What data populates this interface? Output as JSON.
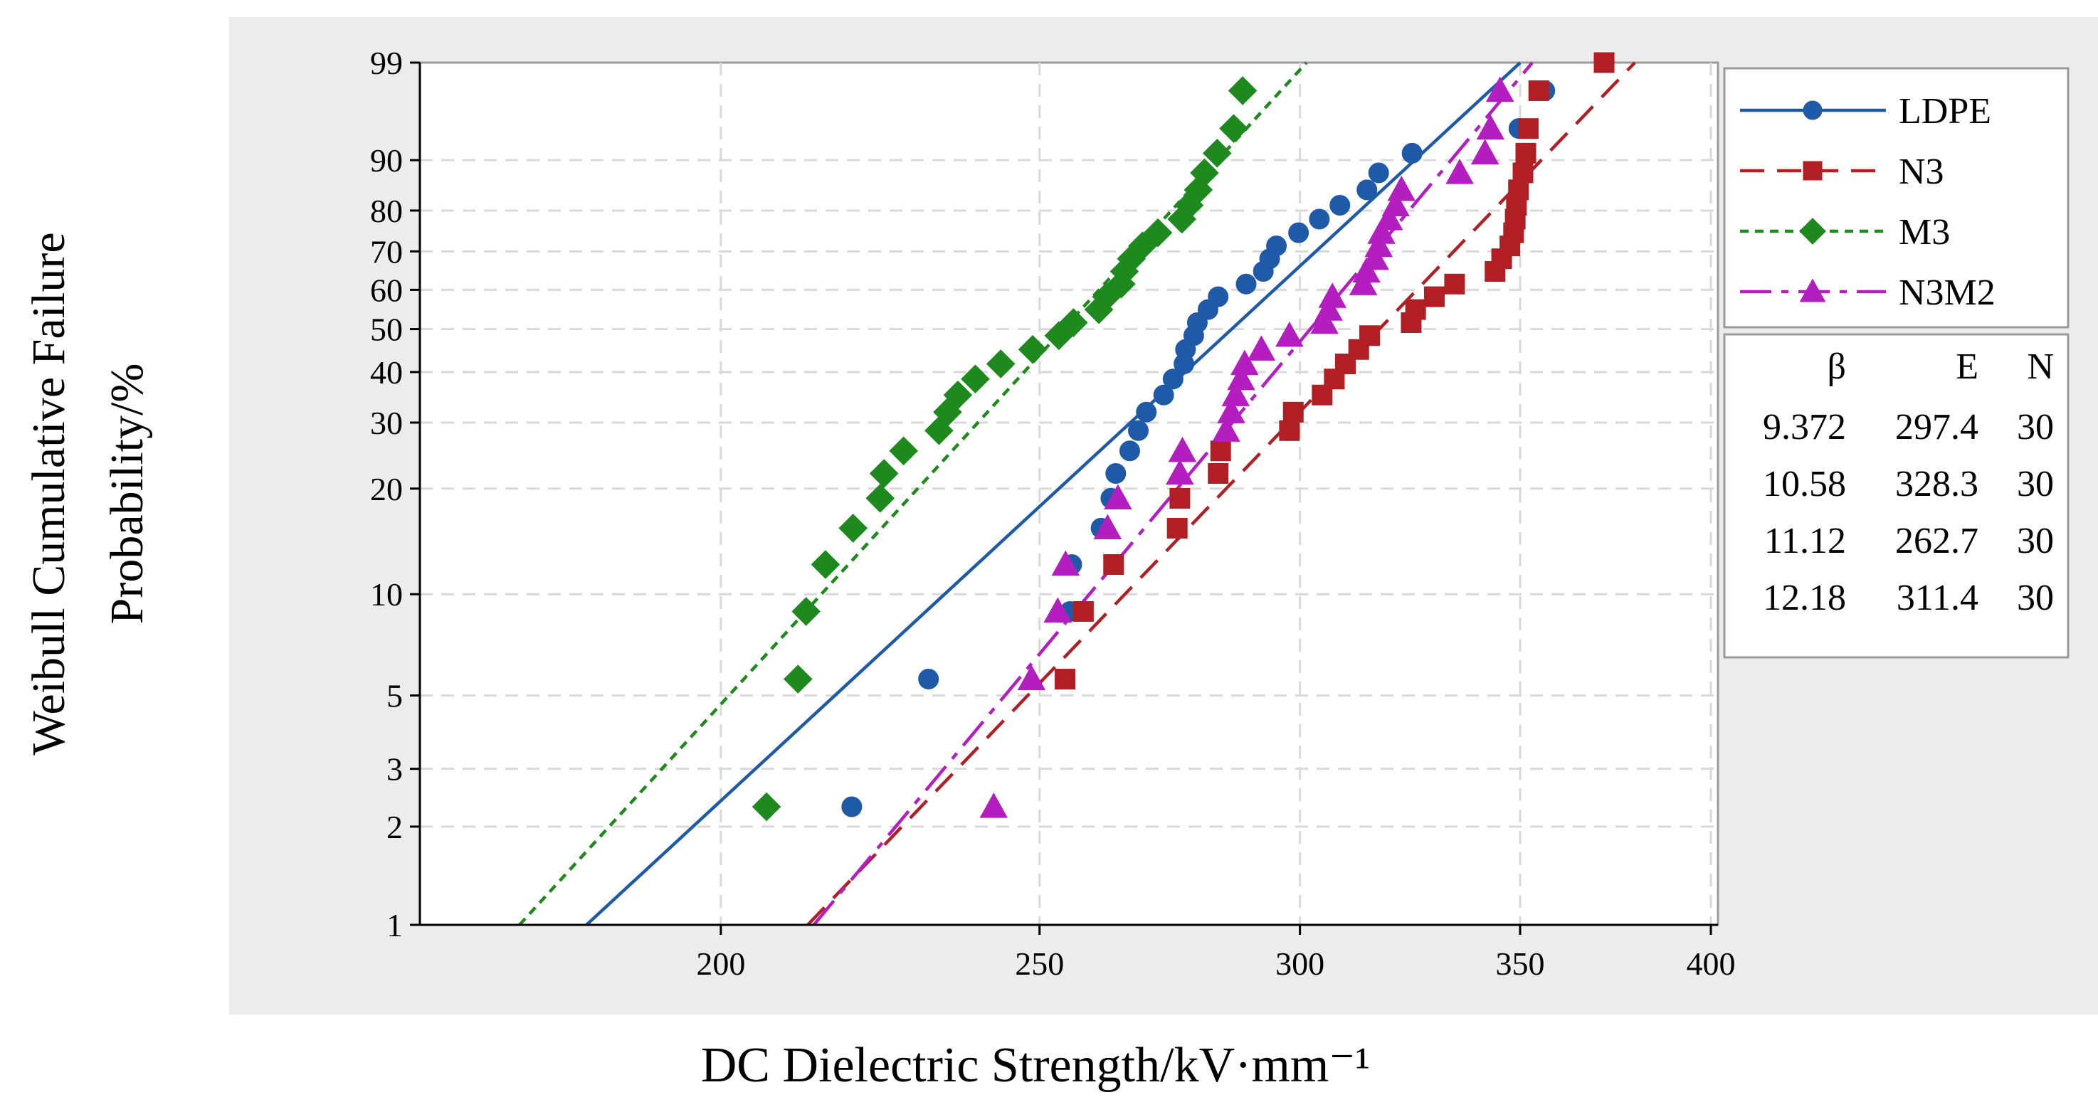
{
  "chart_data": {
    "type": "scatter",
    "subtype": "weibull-probability-plot",
    "xlabel": "DC Dielectric Strength/kV·mm⁻¹",
    "ylabel_line1": "Weibull Cumulative Failure",
    "ylabel_line2": "Probability/%",
    "x_scale": "log",
    "xlim": [
      162,
      402
    ],
    "x_ticks": [
      200,
      250,
      300,
      350,
      400
    ],
    "y_scale": "weibull",
    "ylim": [
      1,
      99
    ],
    "y_ticks": [
      1,
      2,
      3,
      5,
      10,
      20,
      30,
      40,
      50,
      60,
      70,
      80,
      90,
      99
    ],
    "grid": true,
    "legend_position": "right",
    "series": [
      {
        "name": "LDPE",
        "color": "#1f5aa8",
        "marker": "circle",
        "line_style": "solid",
        "beta": "9.372",
        "eta": "297.4",
        "n": "30",
        "fit": {
          "beta": 9.372,
          "eta": 297.4
        },
        "x": [
          219.2,
          231.3,
          255.4,
          255.7,
          261.0,
          262.8,
          263.7,
          266.3,
          267.9,
          269.4,
          272.7,
          274.5,
          276.6,
          276.9,
          278.5,
          279.2,
          281.3,
          283.3,
          288.9,
          292.4,
          293.7,
          295.1,
          299.7,
          304.1,
          308.5,
          314.4,
          317.0,
          324.5,
          349.7,
          356.1
        ],
        "y": [
          2.3,
          5.6,
          8.9,
          12.2,
          15.5,
          18.8,
          22.0,
          25.3,
          28.6,
          31.9,
          35.2,
          38.5,
          41.8,
          45.1,
          48.4,
          51.6,
          54.9,
          58.2,
          61.5,
          64.8,
          68.1,
          71.4,
          74.7,
          78.0,
          81.2,
          84.5,
          87.8,
          91.1,
          94.4,
          97.7
        ]
      },
      {
        "name": "N3",
        "color": "#b11f24",
        "marker": "square",
        "line_style": "dashed",
        "beta": "10.58",
        "eta": "328.3",
        "n": "30",
        "fit": {
          "beta": 10.58,
          "eta": 328.3
        },
        "x": [
          254.5,
          257.8,
          263.3,
          275.3,
          275.8,
          283.3,
          283.8,
          297.8,
          298.6,
          304.7,
          307.3,
          309.7,
          312.6,
          315.0,
          324.3,
          325.3,
          329.6,
          334.3,
          343.9,
          345.5,
          347.5,
          348.4,
          348.8,
          349.1,
          349.6,
          350.7,
          351.4,
          352.0,
          354.6,
          371.2
        ],
        "y": [
          5.6,
          8.9,
          12.2,
          15.5,
          18.8,
          22.0,
          25.3,
          28.6,
          31.9,
          35.2,
          38.5,
          41.8,
          45.1,
          48.4,
          51.6,
          54.9,
          58.2,
          61.5,
          64.8,
          68.1,
          71.4,
          74.7,
          78.0,
          81.2,
          84.5,
          87.8,
          91.1,
          94.4,
          97.7,
          99.0
        ]
      },
      {
        "name": "M3",
        "color": "#1e8a1e",
        "marker": "diamond",
        "line_style": "dotted",
        "beta": "11.12",
        "eta": "262.7",
        "n": "30",
        "fit": {
          "beta": 11.12,
          "eta": 262.7
        },
        "x": [
          206.5,
          211.1,
          212.3,
          215.2,
          219.4,
          223.6,
          224.2,
          227.3,
          233.0,
          234.4,
          236.1,
          239.0,
          243.3,
          248.8,
          253.4,
          256.0,
          260.6,
          262.0,
          264.7,
          265.3,
          266.6,
          268.7,
          271.6,
          276.2,
          277.6,
          279.4,
          280.6,
          283.1,
          286.4,
          288.2
        ],
        "y": [
          2.3,
          5.6,
          8.9,
          12.2,
          15.5,
          18.8,
          22.0,
          25.3,
          28.6,
          31.9,
          35.2,
          38.5,
          41.8,
          45.1,
          48.4,
          51.6,
          54.9,
          58.2,
          61.5,
          64.8,
          68.1,
          71.4,
          74.7,
          78.0,
          81.2,
          84.5,
          87.8,
          91.1,
          94.4,
          97.7
        ]
      },
      {
        "name": "N3M2",
        "color": "#b41ec0",
        "marker": "triangle",
        "line_style": "dashdot",
        "beta": "12.18",
        "eta": "311.4",
        "n": "30",
        "fit": {
          "beta": 12.18,
          "eta": 311.4
        },
        "x": [
          242.1,
          248.6,
          253.2,
          254.6,
          262.2,
          264.1,
          275.8,
          276.3,
          284.9,
          285.9,
          286.8,
          287.9,
          288.6,
          292.0,
          297.8,
          305.2,
          306.1,
          306.9,
          313.6,
          314.3,
          316.2,
          317.0,
          317.6,
          319.3,
          320.8,
          322.1,
          335.5,
          341.5,
          342.8,
          345.1
        ],
        "y": [
          2.3,
          5.6,
          8.9,
          12.2,
          15.5,
          18.8,
          22.0,
          25.3,
          28.6,
          31.9,
          35.2,
          38.5,
          41.8,
          45.1,
          48.4,
          51.6,
          54.9,
          58.2,
          61.5,
          64.8,
          68.1,
          71.4,
          74.7,
          78.0,
          81.2,
          84.5,
          87.8,
          91.1,
          94.4,
          97.7
        ]
      }
    ],
    "stats_table": {
      "headers": [
        "β",
        "E",
        "N"
      ],
      "rows": [
        [
          "9.372",
          "297.4",
          "30"
        ],
        [
          "10.58",
          "328.3",
          "30"
        ],
        [
          "11.12",
          "262.7",
          "30"
        ],
        [
          "12.18",
          "311.4",
          "30"
        ]
      ]
    }
  }
}
